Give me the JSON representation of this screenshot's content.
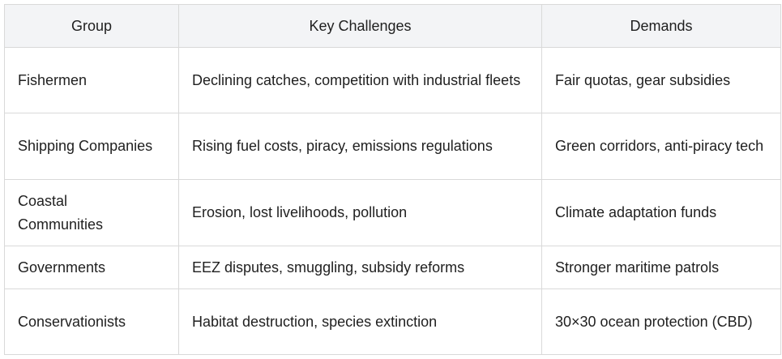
{
  "table": {
    "headers": [
      "Group",
      "Key Challenges",
      "Demands"
    ],
    "rows": [
      [
        "Fishermen",
        "Declining catches, competition with industrial fleets",
        "Fair quotas, gear subsidies"
      ],
      [
        "Shipping Companies",
        "Rising fuel costs, piracy, emissions regulations",
        "Green corridors, anti-piracy tech"
      ],
      [
        "Coastal Communities",
        "Erosion, lost livelihoods, pollution",
        "Climate adaptation funds"
      ],
      [
        "Governments",
        "EEZ disputes, smuggling, subsidy reforms",
        "Stronger maritime patrols"
      ],
      [
        "Conservationists",
        "Habitat destruction, species extinction",
        "30×30 ocean protection (CBD)"
      ]
    ]
  }
}
